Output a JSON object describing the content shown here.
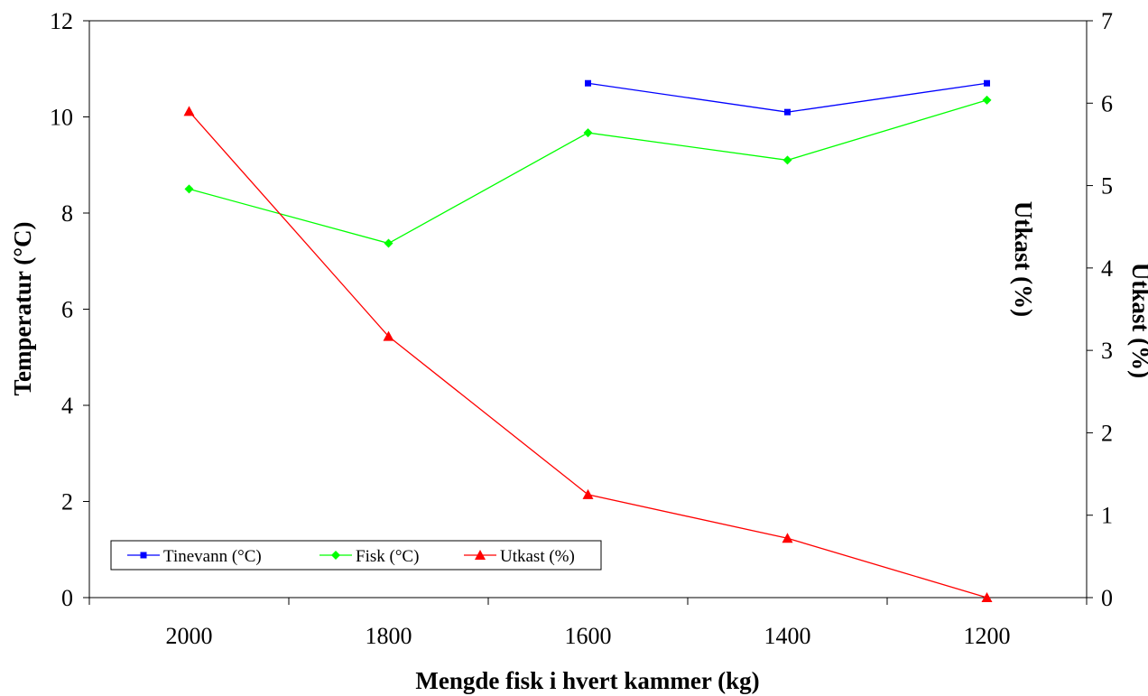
{
  "chart_data": {
    "type": "line",
    "title": "",
    "xlabel": "Mengde fisk i hvert kammer (kg)",
    "ylabel": "Temperatur (°C)",
    "y2label": "Utkast (%)",
    "y2label_clipped": "Utkast (%)",
    "categories": [
      "2000",
      "1800",
      "1600",
      "1400",
      "1200"
    ],
    "x_ticks": [
      "2000",
      "1800",
      "1600",
      "1400",
      "1200"
    ],
    "y_ticks": [
      "0",
      "2",
      "4",
      "6",
      "8",
      "10",
      "12"
    ],
    "y2_ticks": [
      "0",
      "1",
      "2",
      "3",
      "4",
      "5",
      "6",
      "7"
    ],
    "ylim": [
      0,
      12
    ],
    "y2lim": [
      0,
      7
    ],
    "grid": false,
    "legend_position": "bottom-left",
    "series": [
      {
        "name": "Tinevann (°C)",
        "axis": "left",
        "color": "#0000ff",
        "marker": "square",
        "values": [
          null,
          null,
          10.7,
          10.1,
          10.7
        ]
      },
      {
        "name": "Fisk (°C)",
        "axis": "left",
        "color": "#00ff00",
        "marker": "diamond",
        "values": [
          8.5,
          7.37,
          9.67,
          9.1,
          10.35
        ]
      },
      {
        "name": "Utkast (%)",
        "axis": "right",
        "color": "#ff0000",
        "marker": "triangle",
        "values": [
          5.9,
          3.17,
          1.25,
          0.72,
          0.0
        ]
      }
    ]
  }
}
